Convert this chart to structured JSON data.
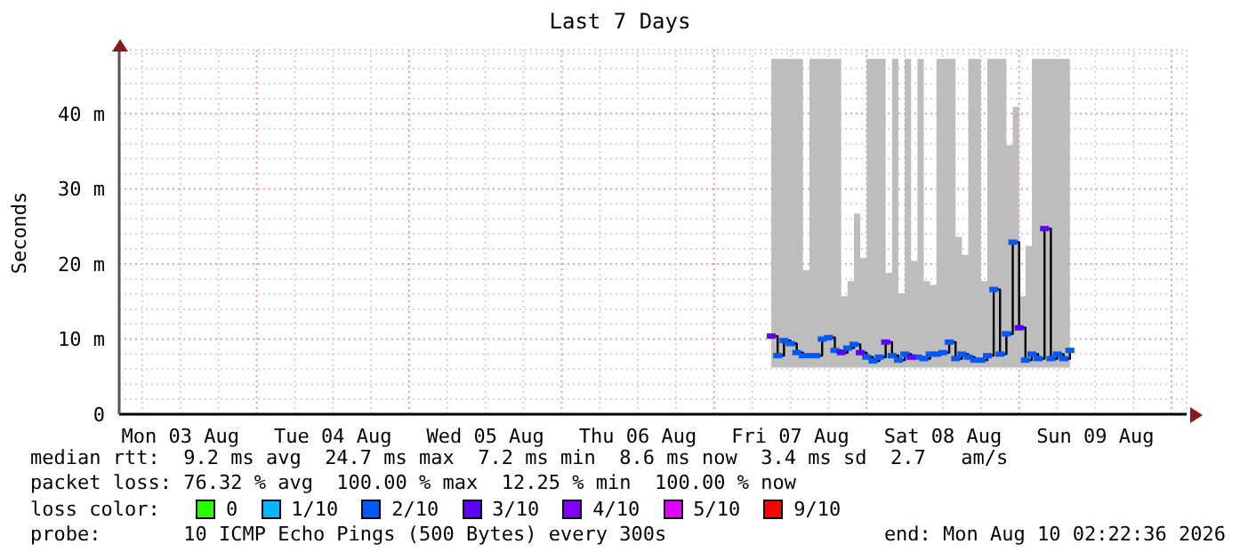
{
  "chart_data": {
    "type": "step",
    "title": "Last 7 Days",
    "ylabel": "Seconds",
    "x": [
      "2026-08-07T09:00",
      "2026-08-07T10:00",
      "2026-08-07T11:00",
      "2026-08-07T12:00",
      "2026-08-07T13:00",
      "2026-08-07T14:00",
      "2026-08-07T15:00",
      "2026-08-07T16:00",
      "2026-08-07T17:00",
      "2026-08-07T18:00",
      "2026-08-07T19:00",
      "2026-08-07T20:00",
      "2026-08-07T21:00",
      "2026-08-07T22:00",
      "2026-08-07T23:00",
      "2026-08-08T00:00",
      "2026-08-08T01:00",
      "2026-08-08T02:00",
      "2026-08-08T03:00",
      "2026-08-08T04:00",
      "2026-08-08T05:00",
      "2026-08-08T06:00",
      "2026-08-08T07:00",
      "2026-08-08T08:00",
      "2026-08-08T09:00",
      "2026-08-08T10:00",
      "2026-08-08T11:00",
      "2026-08-08T12:00",
      "2026-08-08T13:00",
      "2026-08-08T14:00",
      "2026-08-08T15:00",
      "2026-08-08T16:00",
      "2026-08-08T17:00",
      "2026-08-08T18:00",
      "2026-08-08T19:00",
      "2026-08-08T20:00",
      "2026-08-08T21:00",
      "2026-08-08T22:00",
      "2026-08-08T23:00",
      "2026-08-09T00:00",
      "2026-08-09T01:00",
      "2026-08-09T02:00",
      "2026-08-09T03:00",
      "2026-08-09T04:00",
      "2026-08-09T05:00",
      "2026-08-09T06:00",
      "2026-08-09T07:00",
      "2026-08-09T08:00"
    ],
    "series": [
      {
        "color": "#000000",
        "marker": "none",
        "values": [
          10.4,
          7.8,
          9.8,
          9.4,
          8.2,
          7.8,
          7.8,
          7.8,
          10.0,
          10.2,
          8.5,
          8.2,
          8.8,
          9.3,
          8.2,
          7.6,
          7.1,
          7.6,
          9.6,
          7.8,
          7.2,
          8.0,
          7.6,
          7.6,
          7.4,
          8.0,
          8.0,
          8.2,
          9.6,
          7.4,
          8.0,
          7.6,
          7.2,
          7.2,
          7.8,
          16.6,
          8.0,
          10.7,
          22.9,
          11.5,
          7.2,
          8.0,
          7.4,
          24.7,
          7.4,
          8.0,
          7.4,
          8.5
        ],
        "lower": [
          6.2,
          6.2,
          6.2,
          6.2,
          6.2,
          6.2,
          6.2,
          6.2,
          6.2,
          6.2,
          6.2,
          6.2,
          6.2,
          6.2,
          6.2,
          6.2,
          6.2,
          6.2,
          6.2,
          6.2,
          6.2,
          6.2,
          6.2,
          6.2,
          6.2,
          6.2,
          6.2,
          6.2,
          6.2,
          6.2,
          6.2,
          6.2,
          6.2,
          6.2,
          6.2,
          6.2,
          6.2,
          6.2,
          6.2,
          6.2,
          6.2,
          6.2,
          6.2,
          6.2,
          6.2,
          6.2,
          6.2,
          6.2
        ],
        "upper": [
          47.3,
          47.3,
          47.3,
          47.3,
          47.3,
          19.2,
          47.3,
          47.3,
          47.3,
          47.3,
          47.3,
          15.7,
          17.7,
          26.7,
          20.8,
          47.3,
          47.3,
          47.3,
          18.8,
          47.3,
          16.1,
          47.3,
          20.4,
          47.3,
          17.7,
          17.2,
          47.3,
          47.3,
          47.3,
          23.6,
          21.2,
          47.3,
          47.3,
          17.7,
          47.3,
          47.3,
          47.3,
          35.8,
          40.9,
          15.7,
          22.4,
          47.3,
          47.3,
          47.3,
          47.3,
          47.3,
          47.3,
          47.3
        ]
      },
      {
        "type": "scatter",
        "name": "0",
        "color": "#26ff00",
        "values": [
          null,
          null,
          null,
          null,
          null,
          null,
          null,
          null,
          null,
          null,
          null,
          null,
          null,
          null,
          null,
          null,
          null,
          null,
          null,
          null,
          null,
          null,
          null,
          null,
          null,
          null,
          null,
          null,
          null,
          null,
          null,
          null,
          null,
          null,
          null,
          null,
          null,
          null,
          null,
          null,
          null,
          null,
          null,
          null,
          null,
          null,
          null,
          null
        ]
      },
      {
        "type": "scatter",
        "name": "1/10",
        "color": "#00b8ff",
        "values": [
          null,
          null,
          null,
          null,
          null,
          null,
          null,
          null,
          null,
          null,
          null,
          null,
          null,
          null,
          null,
          null,
          null,
          null,
          null,
          null,
          null,
          null,
          null,
          null,
          null,
          null,
          null,
          null,
          null,
          null,
          null,
          null,
          null,
          null,
          null,
          null,
          null,
          null,
          null,
          null,
          null,
          null,
          null,
          null,
          null,
          null,
          null,
          null
        ]
      },
      {
        "type": "scatter",
        "name": "2/10",
        "color": "#0059ff",
        "x": [
          "2026-08-07T10:00",
          "2026-08-07T11:00",
          "2026-08-07T12:00",
          "2026-08-07T13:00",
          "2026-08-07T14:00",
          "2026-08-07T15:00",
          "2026-08-07T16:00",
          "2026-08-07T17:00",
          "2026-08-07T18:00",
          "2026-08-07T19:00",
          "2026-08-07T21:00",
          "2026-08-07T22:00",
          "2026-08-08T00:00",
          "2026-08-08T01:00",
          "2026-08-08T02:00",
          "2026-08-08T04:00",
          "2026-08-08T05:00",
          "2026-08-08T06:00",
          "2026-08-08T08:00",
          "2026-08-08T09:00",
          "2026-08-08T10:00",
          "2026-08-08T11:00",
          "2026-08-08T12:00",
          "2026-08-08T13:00",
          "2026-08-08T14:00",
          "2026-08-08T15:00",
          "2026-08-08T16:00",
          "2026-08-08T17:00",
          "2026-08-08T18:00",
          "2026-08-08T19:00",
          "2026-08-08T20:00",
          "2026-08-08T21:00",
          "2026-08-08T22:00",
          "2026-08-08T23:00",
          "2026-08-09T01:00",
          "2026-08-09T02:00",
          "2026-08-09T03:00",
          "2026-08-09T05:00",
          "2026-08-09T06:00",
          "2026-08-09T07:00",
          "2026-08-09T08:00"
        ],
        "values": [
          7.8,
          9.8,
          9.4,
          8.2,
          7.8,
          7.8,
          7.8,
          10.0,
          10.2,
          8.5,
          8.8,
          9.3,
          7.6,
          7.1,
          7.6,
          7.8,
          7.2,
          8.0,
          7.6,
          7.4,
          8.0,
          8.0,
          8.2,
          9.6,
          7.4,
          8.0,
          7.6,
          7.2,
          7.2,
          7.8,
          16.6,
          8.0,
          10.7,
          22.9,
          7.2,
          8.0,
          7.4,
          7.4,
          8.0,
          7.4,
          8.5
        ]
      },
      {
        "type": "scatter",
        "name": "3/10",
        "color": "#5e00ff",
        "x": [
          "2026-08-07T09:00",
          "2026-08-07T20:00",
          "2026-08-07T23:00",
          "2026-08-08T03:00",
          "2026-08-08T07:00",
          "2026-08-09T00:00",
          "2026-08-09T04:00"
        ],
        "values": [
          10.4,
          8.2,
          8.2,
          9.6,
          7.6,
          11.5,
          24.7
        ]
      },
      {
        "type": "scatter",
        "name": "4/10",
        "color": "#7e00ff",
        "values": [
          null,
          null,
          null,
          null,
          null,
          null,
          null,
          null,
          null,
          null,
          null,
          null,
          null,
          null,
          null,
          null,
          null,
          null,
          null,
          null,
          null,
          null,
          null,
          null,
          null,
          null,
          null,
          null,
          null,
          null,
          null,
          null,
          null,
          null,
          null,
          null,
          null,
          null,
          null,
          null,
          null,
          null,
          null,
          null,
          null,
          null,
          null,
          null
        ]
      },
      {
        "type": "scatter",
        "name": "5/10",
        "color": "#dd00ff",
        "values": [
          null,
          null,
          null,
          null,
          null,
          null,
          null,
          null,
          null,
          null,
          null,
          null,
          null,
          null,
          null,
          null,
          null,
          null,
          null,
          null,
          null,
          null,
          null,
          null,
          null,
          null,
          null,
          null,
          null,
          null,
          null,
          null,
          null,
          null,
          null,
          null,
          null,
          null,
          null,
          null,
          null,
          null,
          null,
          null,
          null,
          null,
          null,
          null
        ]
      },
      {
        "type": "scatter",
        "name": "9/10",
        "color": "#ff0000",
        "values": [
          null,
          null,
          null,
          null,
          null,
          null,
          null,
          null,
          null,
          null,
          null,
          null,
          null,
          null,
          null,
          null,
          null,
          null,
          null,
          null,
          null,
          null,
          null,
          null,
          null,
          null,
          null,
          null,
          null,
          null,
          null,
          null,
          null,
          null,
          null,
          null,
          null,
          null,
          null,
          null,
          null,
          null,
          null,
          null,
          null,
          null,
          null,
          null
        ]
      }
    ],
    "marker": "square",
    "xlim": [
      "2026-08-03T02:22",
      "2026-08-10T02:22"
    ],
    "xticks": [
      {
        "value": "2026-08-03T06:00",
        "label": null
      },
      {
        "value": "2026-08-03T12:00",
        "label": "Mon 03 Aug"
      },
      {
        "value": "2026-08-03T18:00",
        "label": null
      },
      {
        "value": "2026-08-04T00:00",
        "label": null
      },
      {
        "value": "2026-08-04T06:00",
        "label": null
      },
      {
        "value": "2026-08-04T12:00",
        "label": "Tue 04 Aug"
      },
      {
        "value": "2026-08-04T18:00",
        "label": null
      },
      {
        "value": "2026-08-05T00:00",
        "label": null
      },
      {
        "value": "2026-08-05T06:00",
        "label": null
      },
      {
        "value": "2026-08-05T12:00",
        "label": "Wed 05 Aug"
      },
      {
        "value": "2026-08-05T18:00",
        "label": null
      },
      {
        "value": "2026-08-06T00:00",
        "label": null
      },
      {
        "value": "2026-08-06T06:00",
        "label": null
      },
      {
        "value": "2026-08-06T12:00",
        "label": "Thu 06 Aug"
      },
      {
        "value": "2026-08-06T18:00",
        "label": null
      },
      {
        "value": "2026-08-07T00:00",
        "label": null
      },
      {
        "value": "2026-08-07T06:00",
        "label": null
      },
      {
        "value": "2026-08-07T12:00",
        "label": "Fri 07 Aug"
      },
      {
        "value": "2026-08-07T18:00",
        "label": null
      },
      {
        "value": "2026-08-08T00:00",
        "label": null
      },
      {
        "value": "2026-08-08T06:00",
        "label": null
      },
      {
        "value": "2026-08-08T12:00",
        "label": "Sat 08 Aug"
      },
      {
        "value": "2026-08-08T18:00",
        "label": null
      },
      {
        "value": "2026-08-09T00:00",
        "label": null
      },
      {
        "value": "2026-08-09T06:00",
        "label": null
      },
      {
        "value": "2026-08-09T12:00",
        "label": "Sun 09 Aug"
      },
      {
        "value": "2026-08-09T18:00",
        "label": null
      },
      {
        "value": "2026-08-10T00:00",
        "label": null
      }
    ],
    "ylim": [
      0,
      48.5
    ],
    "yticks": [
      0,
      {
        "value": 2,
        "label": null
      },
      {
        "value": 4,
        "label": null
      },
      {
        "value": 6,
        "label": null
      },
      {
        "value": 8,
        "label": null
      },
      {
        "value": 10,
        "label": "10 m"
      },
      {
        "value": 12,
        "label": null
      },
      {
        "value": 14,
        "label": null
      },
      {
        "value": 16,
        "label": null
      },
      {
        "value": 18,
        "label": null
      },
      {
        "value": 20,
        "label": "20 m"
      },
      {
        "value": 22,
        "label": null
      },
      {
        "value": 24,
        "label": null
      },
      {
        "value": 26,
        "label": null
      },
      {
        "value": 28,
        "label": null
      },
      {
        "value": 30,
        "label": "30 m"
      },
      {
        "value": 32,
        "label": null
      },
      {
        "value": 34,
        "label": null
      },
      {
        "value": 36,
        "label": null
      },
      {
        "value": 38,
        "label": null
      },
      {
        "value": 40,
        "label": "40 m"
      },
      {
        "value": 42,
        "label": null
      },
      {
        "value": 44,
        "label": null
      },
      {
        "value": 46,
        "label": null
      },
      {
        "value": 48,
        "label": null
      }
    ],
    "grid": true,
    "legend": "bottom",
    "legend_title": "loss color:",
    "annotations": [
      "median rtt:  9.2 ms avg  24.7 ms max  7.2 ms min  8.6 ms now  3.4 ms sd  2.7   am/s",
      "packet loss: 76.32 % avg  100.00 % max  12.25 % min  100.00 % now",
      "probe:       10 ICMP Echo Pings (500 Bytes) every 300s",
      "end: Mon Aug 10 02:22:36 2026"
    ]
  }
}
